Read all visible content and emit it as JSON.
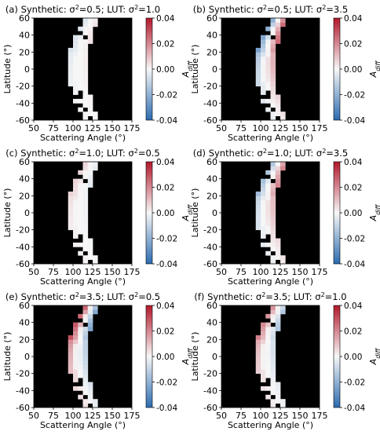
{
  "figure": {
    "colormap": {
      "negative": "#2b6bb0",
      "zero": "#f7f7f7",
      "positive": "#b2182b"
    },
    "mask_color": "#000000"
  },
  "chart_data": [
    {
      "type": "heatmap",
      "title": "(a) Synthetic: σ²=0.5; LUT: σ²=1.0",
      "xlabel": "Scattering Angle (°)",
      "ylabel": "Latitude (°)",
      "colorbar_label": "A_diff",
      "xlim": [
        50,
        175
      ],
      "ylim": [
        -60,
        60
      ],
      "xticks": [
        "50",
        "75",
        "100",
        "125",
        "150",
        "175"
      ],
      "yticks": [
        "60",
        "40",
        "20",
        "0",
        "-20",
        "-40",
        "-60"
      ],
      "cbar_ticks": [
        "0.04",
        "0.02",
        "0.00",
        "-0.02",
        "-0.04"
      ],
      "clim": [
        -0.04,
        0.04
      ],
      "band_edge_values": {
        "near_edge": -0.006,
        "far_edge": 0.004
      }
    },
    {
      "type": "heatmap",
      "title": "(b) Synthetic: σ²=0.5; LUT: σ²=3.5",
      "xlabel": "Scattering Angle (°)",
      "ylabel": "Latitude (°)",
      "colorbar_label": "A_diff",
      "xlim": [
        50,
        175
      ],
      "ylim": [
        -60,
        60
      ],
      "xticks": [
        "50",
        "75",
        "100",
        "125",
        "150",
        "175"
      ],
      "yticks": [
        "60",
        "40",
        "20",
        "0",
        "-20",
        "-40",
        "-60"
      ],
      "cbar_ticks": [
        "0.04",
        "0.02",
        "0.00",
        "-0.02",
        "-0.04"
      ],
      "clim": [
        -0.04,
        0.04
      ],
      "band_edge_values": {
        "near_edge": -0.026,
        "far_edge": 0.028
      }
    },
    {
      "type": "heatmap",
      "title": "(c) Synthetic: σ²=1.0; LUT: σ²=0.5",
      "xlabel": "Scattering Angle (°)",
      "ylabel": "Latitude (°)",
      "colorbar_label": "A_diff",
      "xlim": [
        50,
        175
      ],
      "ylim": [
        -60,
        60
      ],
      "xticks": [
        "50",
        "75",
        "100",
        "125",
        "150",
        "175"
      ],
      "yticks": [
        "60",
        "40",
        "20",
        "0",
        "-20",
        "-40",
        "-60"
      ],
      "cbar_ticks": [
        "0.04",
        "0.02",
        "0.00",
        "-0.02",
        "-0.04"
      ],
      "clim": [
        -0.04,
        0.04
      ],
      "band_edge_values": {
        "near_edge": 0.007,
        "far_edge": -0.004
      }
    },
    {
      "type": "heatmap",
      "title": "(d) Synthetic: σ²=1.0; LUT: σ²=3.5",
      "xlabel": "Scattering Angle (°)",
      "ylabel": "Latitude (°)",
      "colorbar_label": "A_diff",
      "xlim": [
        50,
        175
      ],
      "ylim": [
        -60,
        60
      ],
      "xticks": [
        "50",
        "75",
        "100",
        "125",
        "150",
        "175"
      ],
      "yticks": [
        "60",
        "40",
        "20",
        "0",
        "-20",
        "-40",
        "-60"
      ],
      "cbar_ticks": [
        "0.04",
        "0.02",
        "0.00",
        "-0.02",
        "-0.04"
      ],
      "clim": [
        -0.04,
        0.04
      ],
      "band_edge_values": {
        "near_edge": -0.018,
        "far_edge": 0.022
      }
    },
    {
      "type": "heatmap",
      "title": "(e) Synthetic: σ²=3.5; LUT: σ²=0.5",
      "xlabel": "Scattering Angle (°)",
      "ylabel": "Latitude (°)",
      "colorbar_label": "A_diff",
      "xlim": [
        50,
        175
      ],
      "ylim": [
        -60,
        60
      ],
      "xticks": [
        "50",
        "75",
        "100",
        "125",
        "150",
        "175"
      ],
      "yticks": [
        "60",
        "40",
        "20",
        "0",
        "-20",
        "-40",
        "-60"
      ],
      "cbar_ticks": [
        "0.04",
        "0.02",
        "0.00",
        "-0.02",
        "-0.04"
      ],
      "clim": [
        -0.04,
        0.04
      ],
      "band_edge_values": {
        "near_edge": 0.032,
        "far_edge": -0.026
      }
    },
    {
      "type": "heatmap",
      "title": "(f) Synthetic: σ²=3.5; LUT: σ²=1.0",
      "xlabel": "Scattering Angle (°)",
      "ylabel": "Latitude (°)",
      "colorbar_label": "A_diff",
      "xlim": [
        50,
        175
      ],
      "ylim": [
        -60,
        60
      ],
      "xticks": [
        "50",
        "75",
        "100",
        "125",
        "150",
        "175"
      ],
      "yticks": [
        "60",
        "40",
        "20",
        "0",
        "-20",
        "-40",
        "-60"
      ],
      "cbar_ticks": [
        "0.04",
        "0.02",
        "0.00",
        "-0.02",
        "-0.04"
      ],
      "clim": [
        -0.04,
        0.04
      ],
      "band_edge_values": {
        "near_edge": 0.022,
        "far_edge": -0.016
      }
    }
  ]
}
